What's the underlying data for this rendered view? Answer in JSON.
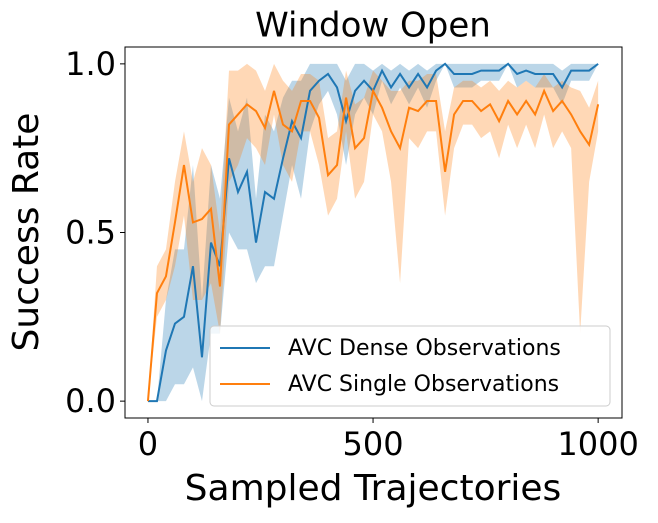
{
  "chart_data": {
    "type": "line",
    "title": "Window Open",
    "x_label": "Sampled Trajectories",
    "y_label": "Success Rate",
    "x": [
      0,
      20,
      40,
      60,
      80,
      100,
      120,
      140,
      160,
      180,
      200,
      220,
      240,
      260,
      280,
      300,
      320,
      340,
      360,
      380,
      400,
      420,
      440,
      460,
      480,
      500,
      520,
      540,
      560,
      580,
      600,
      620,
      640,
      660,
      680,
      700,
      720,
      740,
      760,
      780,
      800,
      820,
      840,
      860,
      880,
      900,
      920,
      940,
      960,
      980,
      1000
    ],
    "series": [
      {
        "name": "AVC Dense Observations",
        "color": "#1f77b4",
        "values": [
          0,
          0,
          0.15,
          0.23,
          0.25,
          0.4,
          0.13,
          0.47,
          0.4,
          0.72,
          0.62,
          0.68,
          0.47,
          0.62,
          0.6,
          0.72,
          0.83,
          0.78,
          0.92,
          0.95,
          0.97,
          0.93,
          0.83,
          0.92,
          0.95,
          0.92,
          0.98,
          0.93,
          0.97,
          0.93,
          0.97,
          0.93,
          0.98,
          1.0,
          0.97,
          0.97,
          0.97,
          0.98,
          0.98,
          0.98,
          1.0,
          0.97,
          0.98,
          0.97,
          0.97,
          0.97,
          0.93,
          0.98,
          0.98,
          0.98,
          1.0
        ],
        "lower": [
          0,
          0,
          0,
          0.05,
          0.05,
          0.1,
          0,
          0.2,
          0.2,
          0.5,
          0.45,
          0.45,
          0.35,
          0.4,
          0.4,
          0.55,
          0.7,
          0.6,
          0.8,
          0.88,
          0.92,
          0.85,
          0.7,
          0.85,
          0.9,
          0.85,
          0.95,
          0.88,
          0.93,
          0.88,
          0.93,
          0.87,
          0.95,
          1.0,
          0.93,
          0.93,
          0.93,
          0.95,
          0.95,
          0.95,
          1.0,
          0.93,
          0.95,
          0.93,
          0.93,
          0.93,
          0.88,
          0.95,
          0.95,
          0.95,
          1.0
        ],
        "upper": [
          0,
          0,
          0.3,
          0.45,
          0.45,
          0.7,
          0.3,
          0.7,
          0.6,
          0.9,
          0.8,
          0.9,
          0.6,
          0.85,
          0.8,
          0.9,
          0.95,
          0.95,
          1.0,
          1.0,
          1.0,
          1.0,
          0.95,
          1.0,
          1.0,
          0.98,
          1.0,
          0.98,
          1.0,
          0.98,
          1.0,
          0.98,
          1.0,
          1.0,
          1.0,
          1.0,
          1.0,
          1.0,
          1.0,
          1.0,
          1.0,
          1.0,
          1.0,
          1.0,
          1.0,
          1.0,
          0.98,
          1.0,
          1.0,
          1.0,
          1.0
        ]
      },
      {
        "name": "AVC Single Observations",
        "color": "#ff7f0e",
        "values": [
          0,
          0.32,
          0.37,
          0.53,
          0.7,
          0.53,
          0.54,
          0.57,
          0.34,
          0.82,
          0.85,
          0.88,
          0.86,
          0.81,
          0.92,
          0.82,
          0.8,
          0.89,
          0.89,
          0.84,
          0.67,
          0.7,
          0.9,
          0.75,
          0.78,
          0.92,
          0.87,
          0.8,
          0.75,
          0.87,
          0.86,
          0.89,
          0.89,
          0.68,
          0.85,
          0.89,
          0.89,
          0.86,
          0.88,
          0.83,
          0.89,
          0.85,
          0.89,
          0.85,
          0.92,
          0.86,
          0.89,
          0.85,
          0.8,
          0.76,
          0.88
        ],
        "lower": [
          0,
          0.25,
          0.3,
          0.4,
          0.55,
          0.3,
          0.3,
          0.35,
          0.2,
          0.65,
          0.7,
          0.78,
          0.75,
          0.7,
          0.85,
          0.7,
          0.65,
          0.8,
          0.8,
          0.7,
          0.55,
          0.6,
          0.8,
          0.6,
          0.65,
          0.85,
          0.8,
          0.65,
          0.35,
          0.78,
          0.75,
          0.8,
          0.8,
          0.55,
          0.75,
          0.82,
          0.82,
          0.78,
          0.8,
          0.72,
          0.82,
          0.75,
          0.82,
          0.75,
          0.85,
          0.75,
          0.8,
          0.75,
          0.2,
          0.65,
          0.8
        ],
        "upper": [
          0,
          0.4,
          0.45,
          0.65,
          0.8,
          0.65,
          0.75,
          0.7,
          0.5,
          0.98,
          0.98,
          1.0,
          0.98,
          0.92,
          1.0,
          0.95,
          0.92,
          0.97,
          0.97,
          0.95,
          0.78,
          0.8,
          0.98,
          0.88,
          0.9,
          0.98,
          0.95,
          0.92,
          0.92,
          0.95,
          0.95,
          0.97,
          0.97,
          0.8,
          0.93,
          0.95,
          0.95,
          0.93,
          0.95,
          0.92,
          0.95,
          0.93,
          0.95,
          0.93,
          0.97,
          0.93,
          0.95,
          0.93,
          0.92,
          0.87,
          0.95
        ]
      }
    ],
    "xlim": [
      -51,
      1053
    ],
    "xticks": [
      0,
      500,
      1000
    ],
    "ylim": [
      -0.05,
      1.05
    ],
    "yticks": [
      {
        "value": 0,
        "label": "0.0"
      },
      {
        "value": 0.5,
        "label": "0.5"
      },
      {
        "value": 1,
        "label": "1.0"
      }
    ],
    "legend": "lower right",
    "band_opacity": 0.3
  }
}
